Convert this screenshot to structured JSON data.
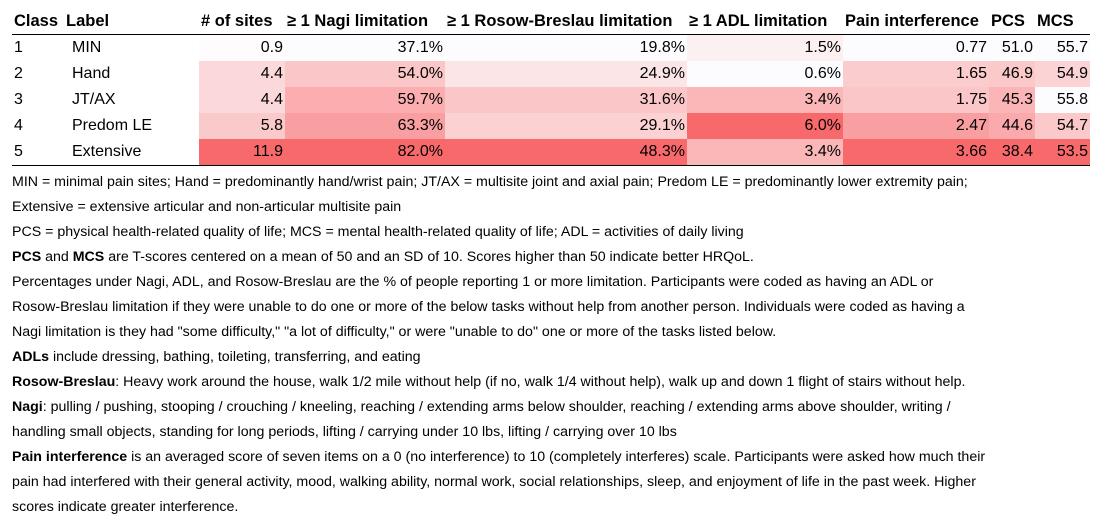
{
  "table": {
    "headers": [
      "Class",
      "Label",
      "# of sites",
      "≥ 1 Nagi limitation",
      "≥ 1 Rosow-Breslau limitation",
      "≥ 1 ADL limitation",
      "Pain interference",
      "PCS",
      "MCS"
    ],
    "rows": [
      {
        "class": "1",
        "label": "MIN",
        "sites": "0.9",
        "nagi": "37.1%",
        "rosow": "19.8%",
        "adl": "1.5%",
        "pain": "0.77",
        "pcs": "51.0",
        "mcs": "55.7"
      },
      {
        "class": "2",
        "label": "Hand",
        "sites": "4.4",
        "nagi": "54.0%",
        "rosow": "24.9%",
        "adl": "0.6%",
        "pain": "1.65",
        "pcs": "46.9",
        "mcs": "54.9"
      },
      {
        "class": "3",
        "label": "JT/AX",
        "sites": "4.4",
        "nagi": "59.7%",
        "rosow": "31.6%",
        "adl": "3.4%",
        "pain": "1.75",
        "pcs": "45.3",
        "mcs": "55.8"
      },
      {
        "class": "4",
        "label": "Predom LE",
        "sites": "5.8",
        "nagi": "63.3%",
        "rosow": "29.1%",
        "adl": "6.0%",
        "pain": "2.47",
        "pcs": "44.6",
        "mcs": "54.7"
      },
      {
        "class": "5",
        "label": "Extensive",
        "sites": "11.9",
        "nagi": "82.0%",
        "rosow": "48.3%",
        "adl": "3.4%",
        "pain": "3.66",
        "pcs": "38.4",
        "mcs": "53.5"
      }
    ],
    "heat_colors": {
      "class": [
        "",
        "",
        "",
        "",
        ""
      ],
      "label": [
        "",
        "",
        "",
        "",
        ""
      ],
      "sites": [
        "#fefcfc",
        "#fbd8d9",
        "#fbd8d9",
        "#facacb",
        "#f8696b"
      ],
      "nagi": [
        "#fcfcff",
        "#fbc6c7",
        "#fbadaf",
        "#fa9fa1",
        "#f8696b"
      ],
      "rosow": [
        "#fcfcff",
        "#fbe5e6",
        "#fbc6c7",
        "#fbd1d2",
        "#f8696b"
      ],
      "adl": [
        "#fcf0f1",
        "#fcfcff",
        "#fbb6b7",
        "#f8696b",
        "#fbb6b7"
      ],
      "pain": [
        "#fcfcff",
        "#fbcccd",
        "#fbc6c7",
        "#fa9fa1",
        "#f8696b"
      ],
      "pcs": [
        "#fcfcff",
        "#fbc9ca",
        "#fbb5b6",
        "#faaaac",
        "#f8696b"
      ],
      "mcs": [
        "#fcfcff",
        "#fbd3d4",
        "#fcfcff",
        "#fbc9ca",
        "#f8696b"
      ]
    }
  },
  "notes": {
    "n1": "MIN = minimal pain sites; Hand = predominantly hand/wrist pain; JT/AX = multisite joint and axial pain; Predom LE = predominantly lower extremity pain;",
    "n2": "Extensive =  extensive articular and non-articular multisite pain",
    "n3": "PCS = physical health-related quality of life; MCS = mental health-related quality of life; ADL = activities of daily living",
    "n4_b1": "PCS",
    "n4_t1": " and ",
    "n4_b2": "MCS",
    "n4_t2": " are T-scores centered on a mean of 50 and an SD of 10. Scores higher than 50 indicate better HRQoL.",
    "n5a": "Percentages under Nagi, ADL, and Rosow-Breslau are the % of people reporting 1 or more limitation. Participants were coded as having an ADL or",
    "n5b": "Rosow-Breslau limitation if they were unable to do one or more of the below tasks without help from another person. Individuals were coded as having a",
    "n5c": "Nagi limitation is they had \"some difficulty,\" \"a lot of difficulty,\" or were \"unable to do\" one or more of the tasks listed below.",
    "n6_b": "ADLs",
    "n6_t": "  include dressing, bathing, toileting, transferring, and eating",
    "n7_b": "Rosow-Breslau",
    "n7_t": ": Heavy work around the house, walk 1/2 mile without help (if no, walk 1/4 without help), walk up and down 1 flight of stairs without help.",
    "n8_b": "Nagi",
    "n8_t": ": pulling / pushing, stooping / crouching / kneeling, reaching / extending arms below shoulder, reaching / extending arms above shoulder, writing /",
    "n8c": "handling small objects, standing for long periods, lifting / carrying under 10 lbs, lifting / carrying over 10 lbs",
    "n9_b": "Pain interference",
    "n9_t": " is an averaged score of seven items on a 0 (no interference) to 10 (completely interferes) scale. Participants were asked how much their",
    "n9b": "pain had interfered with their general activity, mood, walking ability, normal work, social relationships, sleep, and enjoyment of life in the past week. Higher",
    "n9c": "scores indicate greater interference."
  }
}
